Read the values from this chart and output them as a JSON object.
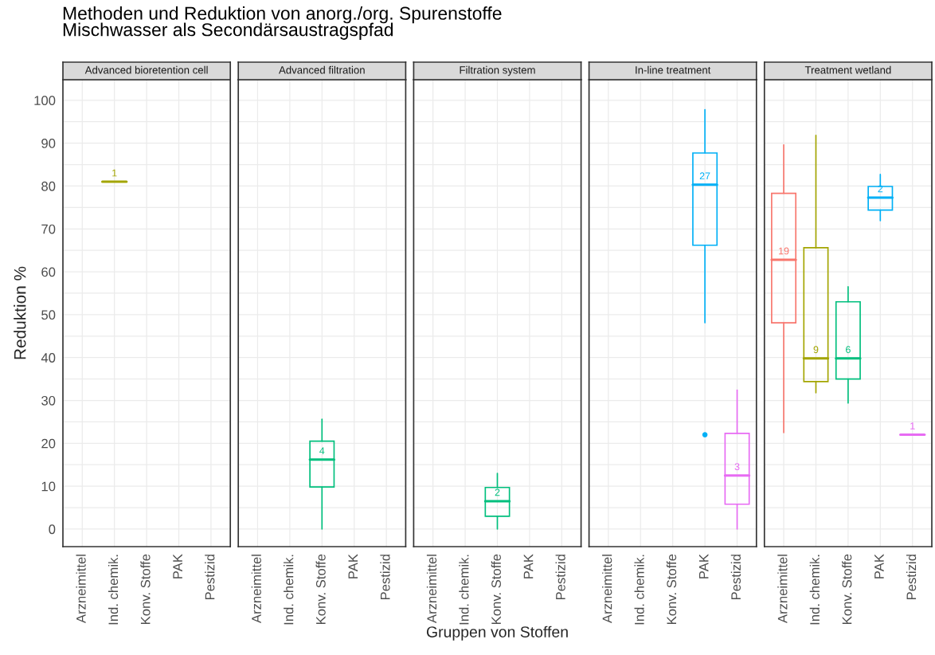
{
  "chart_data": [
    {
      "type": "box",
      "title": "Advanced bioretention cell",
      "ylabel": "Reduktion %",
      "categories": [
        "Arzneimittel",
        "Ind. chemik.",
        "Konv. Stoffe",
        "PAK",
        "Pestizid"
      ],
      "colors": [
        "#f8766d",
        "#a3a500",
        "#00bf7d",
        "#00b0f6",
        "#e76bf3"
      ],
      "ylim": [
        -4.1,
        104.8
      ],
      "yticks": [
        0,
        10,
        20,
        30,
        40,
        50,
        60,
        70,
        80,
        90,
        100
      ],
      "grid": true,
      "boxes": [
        null,
        {
          "low": 81,
          "q1": 81,
          "median": 81,
          "q3": 81,
          "high": 81
        },
        null,
        null,
        null
      ],
      "annotations": [
        "Methoden und Reduktion von anorg./org. Spurenstoffe\nMischwasser als Secondärsaustragspfad",
        "1"
      ]
    },
    {
      "type": "box",
      "title": "Advanced filtration",
      "categories": [
        "Arzneimittel",
        "Ind. chemik.",
        "Konv. Stoffe",
        "PAK",
        "Pestizid"
      ],
      "colors": [
        "#f8766d",
        "#a3a500",
        "#00bf7d",
        "#00b0f6",
        "#e76bf3"
      ],
      "ylim": [
        -4.1,
        104.8
      ],
      "yticks": [
        0,
        10,
        20,
        30,
        40,
        50,
        60,
        70,
        80,
        90,
        100
      ],
      "grid": true,
      "tick_labels": "x",
      "boxes": [
        null,
        null,
        {
          "low": 0,
          "q1": 9.8,
          "median": 16.2,
          "q3": 20.5,
          "high": 25.6
        },
        null,
        null
      ],
      "annotations": [
        "4"
      ]
    },
    {
      "type": "box",
      "title": "Filtration system",
      "xlabel": "Gruppen von Stoffen",
      "categories": [
        "Arzneimittel",
        "Ind. chemik.",
        "Konv. Stoffe",
        "PAK",
        "Pestizid"
      ],
      "colors": [
        "#f8766d",
        "#a3a500",
        "#00bf7d",
        "#00b0f6",
        "#e76bf3"
      ],
      "ylim": [
        -4.1,
        104.8
      ],
      "yticks": [
        0,
        10,
        20,
        30,
        40,
        50,
        60,
        70,
        80,
        90,
        100
      ],
      "grid": true,
      "tick_labels": "x",
      "boxes": [
        null,
        null,
        {
          "low": 0,
          "q1": 3.0,
          "median": 6.5,
          "q3": 9.7,
          "high": 13
        },
        null,
        null
      ],
      "annotations": [
        "2"
      ]
    },
    {
      "type": "box",
      "title": "In-line treatment",
      "categories": [
        "Arzneimittel",
        "Ind. chemik.",
        "Konv. Stoffe",
        "PAK",
        "Pestizid"
      ],
      "colors": [
        "#f8766d",
        "#a3a500",
        "#00bf7d",
        "#00b0f6",
        "#e76bf3"
      ],
      "ylim": [
        -4.1,
        104.8
      ],
      "yticks": [
        0,
        10,
        20,
        30,
        40,
        50,
        60,
        70,
        80,
        90,
        100
      ],
      "grid": true,
      "tick_labels": "x",
      "boxes": [
        null,
        null,
        null,
        {
          "low": 48.1,
          "q1": 66.2,
          "median": 80.3,
          "q3": 87.7,
          "high": 97.8,
          "outliers": [
            22
          ]
        },
        {
          "low": 0,
          "q1": 5.8,
          "median": 12.5,
          "q3": 22.3,
          "high": 32.4
        }
      ],
      "annotations": [
        "27",
        "3"
      ]
    },
    {
      "type": "box",
      "title": "Treatment wetland",
      "categories": [
        "Arzneimittel",
        "Ind. chemik.",
        "Konv. Stoffe",
        "PAK",
        "Pestizid"
      ],
      "colors": [
        "#f8766d",
        "#a3a500",
        "#00bf7d",
        "#00b0f6",
        "#e76bf3"
      ],
      "ylim": [
        -4.1,
        104.8
      ],
      "yticks": [
        0,
        10,
        20,
        30,
        40,
        50,
        60,
        70,
        80,
        90,
        100
      ],
      "grid": true,
      "tick_labels": "x",
      "boxes": [
        {
          "low": 22.5,
          "q1": 48.1,
          "median": 62.8,
          "q3": 78.3,
          "high": 89.6
        },
        {
          "low": 31.8,
          "q1": 34.4,
          "median": 39.8,
          "q3": 65.6,
          "high": 91.8
        },
        {
          "low": 29.4,
          "q1": 35,
          "median": 39.8,
          "q3": 53,
          "high": 56.5
        },
        {
          "low": 71.9,
          "q1": 74.4,
          "median": 77.3,
          "q3": 79.9,
          "high": 82.7
        },
        {
          "low": 22,
          "q1": 22,
          "median": 22,
          "q3": 22,
          "high": 22
        }
      ],
      "annotations": [
        "19",
        "9",
        "6",
        "2",
        "1"
      ]
    }
  ]
}
